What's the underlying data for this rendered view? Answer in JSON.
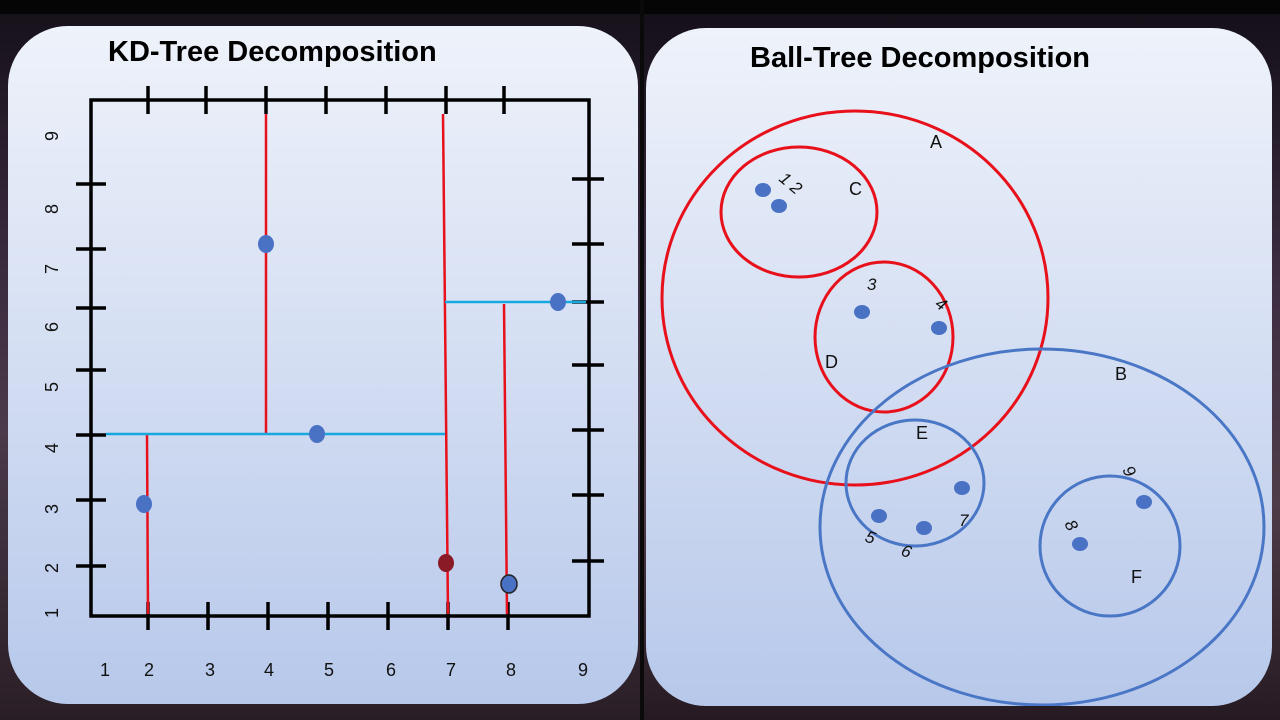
{
  "kd_panel": {
    "title": "KD-Tree Decomposition",
    "x_ticks": [
      "1",
      "2",
      "3",
      "4",
      "5",
      "6",
      "7",
      "8",
      "9"
    ],
    "y_ticks": [
      "1",
      "2",
      "3",
      "4",
      "5",
      "6",
      "7",
      "8",
      "9"
    ],
    "colors": {
      "split_vertical": "#e8101a",
      "split_horizontal": "#18a8e0",
      "point": "#4a72c4",
      "frame": "#000000"
    }
  },
  "ball_panel": {
    "title": "Ball-Tree Decomposition",
    "ball_labels": {
      "A": "A",
      "B": "B",
      "C": "C",
      "D": "D",
      "E": "E",
      "F": "F"
    },
    "point_labels": {
      "p12": "1 2",
      "p3": "3",
      "p4": "4",
      "p5": "5",
      "p6": "6",
      "p7": "7",
      "p8": "8",
      "p9": "9"
    },
    "colors": {
      "red_ball": "#e8101a",
      "blue_ball": "#4a76c6",
      "point": "#4a72c4"
    }
  }
}
